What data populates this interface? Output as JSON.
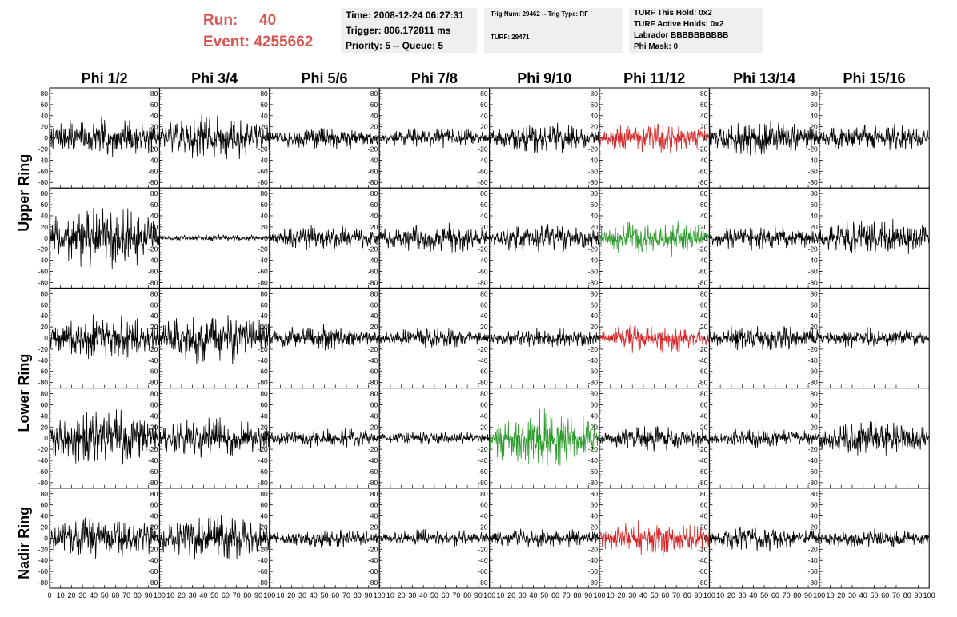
{
  "header": {
    "run_label": "Run:",
    "run_value": "40",
    "event_label": "Event:",
    "event_value": "4255662"
  },
  "info": {
    "time": "Time: 2008-12-24 06:27:31",
    "trigger": "Trigger: 806.172811 ms",
    "priority": "Priority: 5 -- Queue: 5",
    "trig_num": "Trig Num: 29462 -- Trig Type: RF",
    "turf": "TURF: 29471",
    "turf_hold": "TURF This Hold: 0x2",
    "turf_active": "TURF Active Holds: 0x2",
    "labrador": "Labrador BBBBBBBBBB",
    "phi_mask": "Phi Mask: 0"
  },
  "chart_data": {
    "type": "line",
    "columns": [
      "Phi 1/2",
      "Phi 3/4",
      "Phi 5/6",
      "Phi 7/8",
      "Phi 9/10",
      "Phi 11/12",
      "Phi 13/14",
      "Phi 15/16"
    ],
    "rows": [
      "Upper Ring",
      "Upper Ring",
      "Lower Ring",
      "Lower Ring",
      "Nadir Ring"
    ],
    "row_labels": [
      {
        "text": "Upper Ring",
        "span_rows": [
          0,
          1
        ]
      },
      {
        "text": "Lower Ring",
        "span_rows": [
          2,
          3
        ]
      },
      {
        "text": "Nadir Ring",
        "span_rows": [
          4,
          4
        ]
      }
    ],
    "ylim": [
      -90,
      90
    ],
    "yticks": [
      80,
      60,
      40,
      20,
      0,
      -20,
      -40,
      -60,
      -80
    ],
    "xlim": [
      0,
      100
    ],
    "xticks": [
      0,
      10,
      20,
      30,
      40,
      50,
      60,
      70,
      80,
      90,
      100
    ],
    "colors": {
      "normal": "#000000",
      "triggered": "#d62728",
      "l3": "#2a9a2a"
    },
    "trace_state": [
      [
        "normal",
        "normal",
        "normal",
        "normal",
        "normal",
        "triggered",
        "normal",
        "normal"
      ],
      [
        "normal",
        "normal",
        "normal",
        "normal",
        "normal",
        "l3",
        "normal",
        "normal"
      ],
      [
        "normal",
        "normal",
        "normal",
        "normal",
        "normal",
        "triggered",
        "normal",
        "normal"
      ],
      [
        "normal",
        "normal",
        "normal",
        "normal",
        "l3",
        "normal",
        "normal",
        "normal"
      ],
      [
        "normal",
        "normal",
        "normal",
        "normal",
        "normal",
        "triggered",
        "normal",
        "normal"
      ]
    ],
    "approx_peak_amplitude": [
      [
        40,
        45,
        22,
        20,
        30,
        30,
        35,
        30
      ],
      [
        65,
        7,
        25,
        30,
        30,
        40,
        25,
        40
      ],
      [
        45,
        50,
        25,
        20,
        20,
        30,
        30,
        20
      ],
      [
        55,
        40,
        20,
        15,
        55,
        25,
        20,
        35
      ],
      [
        45,
        45,
        20,
        18,
        20,
        35,
        25,
        20
      ]
    ]
  }
}
